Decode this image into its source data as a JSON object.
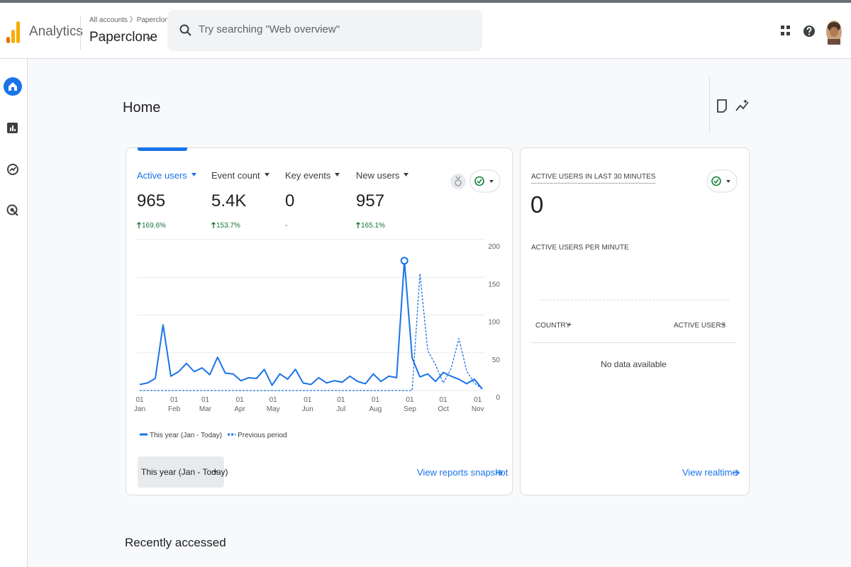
{
  "header": {
    "product": "Analytics",
    "breadcrumb": "All accounts 〉Paperclone",
    "account": "Paperclone",
    "search_placeholder": "Try searching \"Web overview\""
  },
  "page_title": "Home",
  "metrics": [
    {
      "label": "Active users",
      "value": "965",
      "change": "169.6%"
    },
    {
      "label": "Event count",
      "value": "5.4K",
      "change": "153.7%"
    },
    {
      "label": "Key events",
      "value": "0",
      "change": "-"
    },
    {
      "label": "New users",
      "value": "957",
      "change": "165.1%"
    }
  ],
  "chart_data": {
    "type": "line",
    "x": [
      0,
      7,
      14,
      21,
      28,
      35,
      42,
      49,
      56,
      63,
      70,
      77,
      84,
      91,
      98,
      105,
      112,
      119,
      126,
      133,
      140,
      147,
      154,
      161,
      168,
      175,
      182,
      189,
      196,
      203,
      210,
      217,
      224,
      231,
      238,
      245,
      252,
      259,
      266,
      273,
      280,
      287,
      294,
      301,
      308
    ],
    "xlim": [
      0,
      308
    ],
    "xticks": [
      {
        "value": 0,
        "label": "01\nJan"
      },
      {
        "value": 31,
        "label": "01\nFeb"
      },
      {
        "value": 59,
        "label": "01\nMar"
      },
      {
        "value": 90,
        "label": "01\nApr"
      },
      {
        "value": 120,
        "label": "01\nMay"
      },
      {
        "value": 151,
        "label": "01\nJun"
      },
      {
        "value": 181,
        "label": "01\nJul"
      },
      {
        "value": 212,
        "label": "01\nAug"
      },
      {
        "value": 243,
        "label": "01\nSep"
      },
      {
        "value": 273,
        "label": "01\nOct"
      },
      {
        "value": 304,
        "label": "01\nNov"
      }
    ],
    "ylim": [
      0,
      200
    ],
    "yticks": [
      0,
      50,
      100,
      150,
      200
    ],
    "grid": true,
    "series": [
      {
        "name": "This year (Jan - Today)",
        "color": "#1a73e8",
        "line_style": "solid",
        "values": [
          8,
          10,
          16,
          87,
          19,
          25,
          36,
          25,
          30,
          21,
          44,
          23,
          22,
          13,
          17,
          16,
          28,
          7,
          22,
          15,
          28,
          10,
          8,
          17,
          10,
          13,
          11,
          19,
          12,
          9,
          22,
          12,
          19,
          17,
          172,
          43,
          18,
          22,
          12,
          24,
          19,
          15,
          9,
          15,
          2
        ]
      },
      {
        "name": "Previous period",
        "color": "#1a73e8",
        "line_style": "dotted",
        "values": [
          0,
          0,
          0,
          0,
          0,
          0,
          0,
          0,
          0,
          0,
          0,
          0,
          0,
          0,
          0,
          0,
          0,
          0,
          0,
          0,
          0,
          0,
          0,
          0,
          0,
          0,
          0,
          0,
          0,
          0,
          0,
          0,
          0,
          0,
          0,
          0,
          155,
          53,
          34,
          10,
          29,
          69,
          26,
          10,
          2
        ]
      }
    ]
  },
  "range_selector": "This year (Jan - Today)",
  "snapshot_link": "View reports snapshot",
  "realtime": {
    "title": "ACTIVE USERS IN LAST 30 MINUTES",
    "value": 0,
    "per_minute_label": "ACTIVE USERS PER MINUTE",
    "table": {
      "columns": [
        "COUNTRY",
        "ACTIVE USERS"
      ],
      "empty_message": "No data available"
    },
    "link": "View realtime"
  },
  "recently_accessed": "Recently accessed"
}
